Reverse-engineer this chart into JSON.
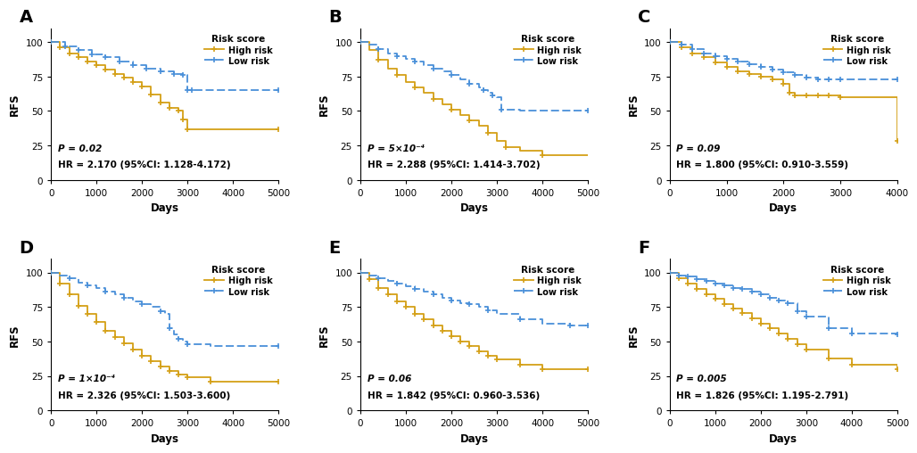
{
  "panels": [
    {
      "label": "A",
      "p_text": "P = 0.02",
      "hr_text": "HR = 2.170 (95%CI: 1.128-4.172)",
      "xlim": [
        0,
        5000
      ],
      "xticks": [
        0,
        1000,
        2000,
        3000,
        4000,
        5000
      ],
      "high_risk": {
        "x": [
          0,
          200,
          400,
          600,
          800,
          1000,
          1200,
          1400,
          1600,
          1800,
          2000,
          2200,
          2400,
          2600,
          2800,
          2900,
          3000,
          5000
        ],
        "y": [
          100,
          96,
          92,
          89,
          86,
          83,
          80,
          77,
          74,
          71,
          68,
          62,
          56,
          52,
          50,
          44,
          37,
          37
        ]
      },
      "low_risk": {
        "x": [
          0,
          300,
          600,
          900,
          1200,
          1500,
          1800,
          2100,
          2400,
          2700,
          2900,
          3000,
          3100,
          5000
        ],
        "y": [
          100,
          97,
          94,
          91,
          89,
          86,
          83,
          81,
          79,
          77,
          76,
          65,
          65,
          65
        ]
      }
    },
    {
      "label": "B",
      "p_text": "P = 5×10⁻⁴",
      "hr_text": "HR = 2.288 (95%CI: 1.414-3.702)",
      "xlim": [
        0,
        5000
      ],
      "xticks": [
        0,
        1000,
        2000,
        3000,
        4000,
        5000
      ],
      "high_risk": {
        "x": [
          0,
          200,
          400,
          600,
          800,
          1000,
          1200,
          1400,
          1600,
          1800,
          2000,
          2200,
          2400,
          2600,
          2800,
          3000,
          3200,
          3500,
          4000,
          5000
        ],
        "y": [
          100,
          94,
          87,
          81,
          76,
          71,
          67,
          63,
          59,
          55,
          51,
          47,
          43,
          39,
          34,
          28,
          24,
          21,
          18,
          18
        ]
      },
      "low_risk": {
        "x": [
          0,
          200,
          400,
          600,
          800,
          1000,
          1200,
          1400,
          1600,
          1800,
          2000,
          2200,
          2400,
          2600,
          2700,
          2800,
          2900,
          3000,
          3100,
          3500,
          5000
        ],
        "y": [
          100,
          98,
          95,
          92,
          90,
          88,
          86,
          83,
          81,
          79,
          76,
          73,
          70,
          67,
          65,
          63,
          61,
          60,
          51,
          50,
          50
        ]
      }
    },
    {
      "label": "C",
      "p_text": "P = 0.09",
      "hr_text": "HR = 1.800 (95%CI: 0.910-3.559)",
      "xlim": [
        0,
        4000
      ],
      "xticks": [
        0,
        1000,
        2000,
        3000,
        4000
      ],
      "high_risk": {
        "x": [
          0,
          200,
          400,
          600,
          800,
          1000,
          1200,
          1400,
          1600,
          1800,
          2000,
          2100,
          2200,
          2400,
          2600,
          2800,
          3000,
          4000
        ],
        "y": [
          100,
          96,
          92,
          89,
          85,
          82,
          79,
          77,
          75,
          73,
          70,
          63,
          61,
          61,
          61,
          61,
          60,
          28
        ]
      },
      "low_risk": {
        "x": [
          0,
          200,
          400,
          600,
          800,
          1000,
          1200,
          1400,
          1600,
          1800,
          2000,
          2200,
          2400,
          2600,
          2800,
          3000,
          4000
        ],
        "y": [
          100,
          98,
          95,
          92,
          90,
          88,
          86,
          84,
          82,
          80,
          78,
          76,
          74,
          73,
          73,
          73,
          73
        ]
      }
    },
    {
      "label": "D",
      "p_text": "P = 1×10⁻⁴",
      "hr_text": "HR = 2.326 (95%CI: 1.503-3.600)",
      "xlim": [
        0,
        5000
      ],
      "xticks": [
        0,
        1000,
        2000,
        3000,
        4000,
        5000
      ],
      "high_risk": {
        "x": [
          0,
          200,
          400,
          600,
          800,
          1000,
          1200,
          1400,
          1600,
          1800,
          2000,
          2200,
          2400,
          2600,
          2800,
          3000,
          3500,
          5000
        ],
        "y": [
          100,
          92,
          84,
          76,
          70,
          64,
          58,
          53,
          49,
          44,
          40,
          36,
          32,
          29,
          26,
          24,
          21,
          21
        ]
      },
      "low_risk": {
        "x": [
          0,
          200,
          400,
          600,
          800,
          1000,
          1200,
          1400,
          1600,
          1800,
          2000,
          2200,
          2400,
          2500,
          2600,
          2700,
          2800,
          2900,
          3000,
          3500,
          5000
        ],
        "y": [
          100,
          98,
          96,
          93,
          91,
          89,
          86,
          84,
          82,
          79,
          77,
          75,
          72,
          70,
          60,
          55,
          52,
          50,
          48,
          47,
          47
        ]
      }
    },
    {
      "label": "E",
      "p_text": "P = 0.06",
      "hr_text": "HR = 1.842 (95%CI: 0.960-3.536)",
      "xlim": [
        0,
        5000
      ],
      "xticks": [
        0,
        1000,
        2000,
        3000,
        4000,
        5000
      ],
      "high_risk": {
        "x": [
          0,
          200,
          400,
          600,
          800,
          1000,
          1200,
          1400,
          1600,
          1800,
          2000,
          2200,
          2400,
          2600,
          2800,
          3000,
          3500,
          4000,
          5000
        ],
        "y": [
          100,
          95,
          89,
          84,
          79,
          75,
          70,
          66,
          62,
          58,
          54,
          50,
          47,
          43,
          40,
          37,
          33,
          30,
          30
        ]
      },
      "low_risk": {
        "x": [
          0,
          200,
          400,
          600,
          800,
          1000,
          1200,
          1400,
          1600,
          1800,
          2000,
          2200,
          2400,
          2600,
          2800,
          3000,
          3500,
          4000,
          4600,
          4700,
          5000
        ],
        "y": [
          100,
          98,
          96,
          94,
          92,
          90,
          88,
          86,
          84,
          82,
          80,
          78,
          77,
          75,
          73,
          70,
          66,
          63,
          62,
          62,
          62
        ]
      }
    },
    {
      "label": "F",
      "p_text": "P = 0.005",
      "hr_text": "HR = 1.826 (95%CI: 1.195-2.791)",
      "xlim": [
        0,
        5000
      ],
      "xticks": [
        0,
        1000,
        2000,
        3000,
        4000,
        5000
      ],
      "high_risk": {
        "x": [
          0,
          200,
          400,
          600,
          800,
          1000,
          1200,
          1400,
          1600,
          1800,
          2000,
          2200,
          2400,
          2600,
          2800,
          3000,
          3500,
          4000,
          5000
        ],
        "y": [
          100,
          96,
          92,
          88,
          84,
          81,
          77,
          74,
          71,
          67,
          63,
          60,
          56,
          52,
          48,
          44,
          38,
          33,
          30
        ]
      },
      "low_risk": {
        "x": [
          0,
          200,
          400,
          600,
          800,
          1000,
          1200,
          1400,
          1600,
          1800,
          2000,
          2200,
          2400,
          2600,
          2800,
          3000,
          3500,
          4000,
          5000
        ],
        "y": [
          100,
          98,
          97,
          95,
          94,
          92,
          91,
          89,
          88,
          86,
          84,
          82,
          80,
          78,
          72,
          68,
          60,
          56,
          55
        ]
      }
    }
  ],
  "high_risk_color": "#D4A017",
  "low_risk_color": "#4A90D9",
  "background_color": "#ffffff",
  "ylabel": "RFS",
  "xlabel": "Days",
  "yticks": [
    0,
    25,
    50,
    75,
    100
  ],
  "ylim": [
    0,
    110
  ]
}
